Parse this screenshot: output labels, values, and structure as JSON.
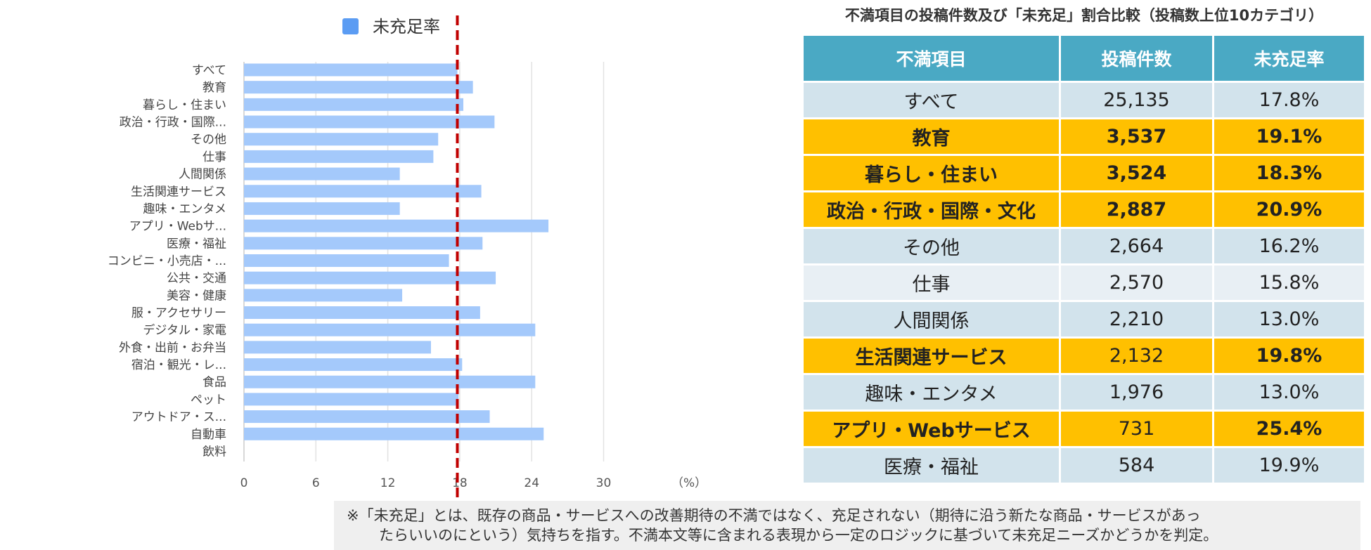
{
  "chart_data": {
    "type": "bar",
    "orientation": "horizontal",
    "series": [
      {
        "name": "未充足率",
        "color": "#a4c9fb"
      }
    ],
    "legend_color": "#5b9cf3",
    "categories": [
      "すべて",
      "教育",
      "暮らし・住まい",
      "政治・行政・国際...",
      "その他",
      "仕事",
      "人間関係",
      "生活関連サービス",
      "趣味・エンタメ",
      "アプリ・Webサ...",
      "医療・福祉",
      "コンビニ・小売店・...",
      "公共・交通",
      "美容・健康",
      "服・アクセサリー",
      "デジタル・家電",
      "外食・出前・お弁当",
      "宿泊・観光・レ...",
      "食品",
      "ペット",
      "アウトドア・ス...",
      "自動車",
      "飲料"
    ],
    "values": [
      17.8,
      19.1,
      18.3,
      20.9,
      16.2,
      15.8,
      13.0,
      19.8,
      13.0,
      25.4,
      19.9,
      17.1,
      21.0,
      13.2,
      19.7,
      24.3,
      15.6,
      18.2,
      24.3,
      17.9,
      20.5,
      25.0,
      null
    ],
    "xticks": [
      0,
      6,
      12,
      18,
      24,
      30
    ],
    "xlim": [
      0,
      30
    ],
    "unit_label": "（%）",
    "reference_line": {
      "value": 17.8,
      "style": "dashed",
      "color": "#c00000"
    },
    "grid": "vertical"
  },
  "table": {
    "title": "不満項目の投稿件数及び「未充足」割合比較（投稿数上位10カテゴリ）",
    "headers": [
      "不満項目",
      "投稿件数",
      "未充足率"
    ],
    "rows": [
      {
        "name": "すべて",
        "count": "25,135",
        "rate": "17.8%",
        "highlight": false
      },
      {
        "name": "教育",
        "count": "3,537",
        "rate": "19.1%",
        "highlight": true,
        "count_bold": true
      },
      {
        "name": "暮らし・住まい",
        "count": "3,524",
        "rate": "18.3%",
        "highlight": true,
        "count_bold": true
      },
      {
        "name": "政治・行政・国際・文化",
        "count": "2,887",
        "rate": "20.9%",
        "highlight": true,
        "count_bold": true
      },
      {
        "name": "その他",
        "count": "2,664",
        "rate": "16.2%",
        "highlight": false
      },
      {
        "name": "仕事",
        "count": "2,570",
        "rate": "15.8%",
        "highlight": false
      },
      {
        "name": "人間関係",
        "count": "2,210",
        "rate": "13.0%",
        "highlight": false
      },
      {
        "name": "生活関連サービス",
        "count": "2,132",
        "rate": "19.8%",
        "highlight": true,
        "count_bold": false
      },
      {
        "name": "趣味・エンタメ",
        "count": "1,976",
        "rate": "13.0%",
        "highlight": false
      },
      {
        "name": "アプリ・Webサービス",
        "count": "731",
        "rate": "25.4%",
        "highlight": true,
        "count_bold": false
      },
      {
        "name": "医療・福祉",
        "count": "584",
        "rate": "19.9%",
        "highlight": false
      }
    ],
    "colors": {
      "header": "#4aa9c4",
      "highlight": "#ffc000",
      "row_a": "#d2e3ec",
      "row_b": "#e8eff4"
    }
  },
  "footnote": {
    "line1": "※「未充足」とは、既存の商品・サービスへの改善期待の不満ではなく、充足されない（期待に沿う新たな商品・サービスがあっ",
    "line2": "たらいいのにという）気持ちを指す。不満本文等に含まれる表現から一定のロジックに基づいて未充足ニーズかどうかを判定。"
  }
}
